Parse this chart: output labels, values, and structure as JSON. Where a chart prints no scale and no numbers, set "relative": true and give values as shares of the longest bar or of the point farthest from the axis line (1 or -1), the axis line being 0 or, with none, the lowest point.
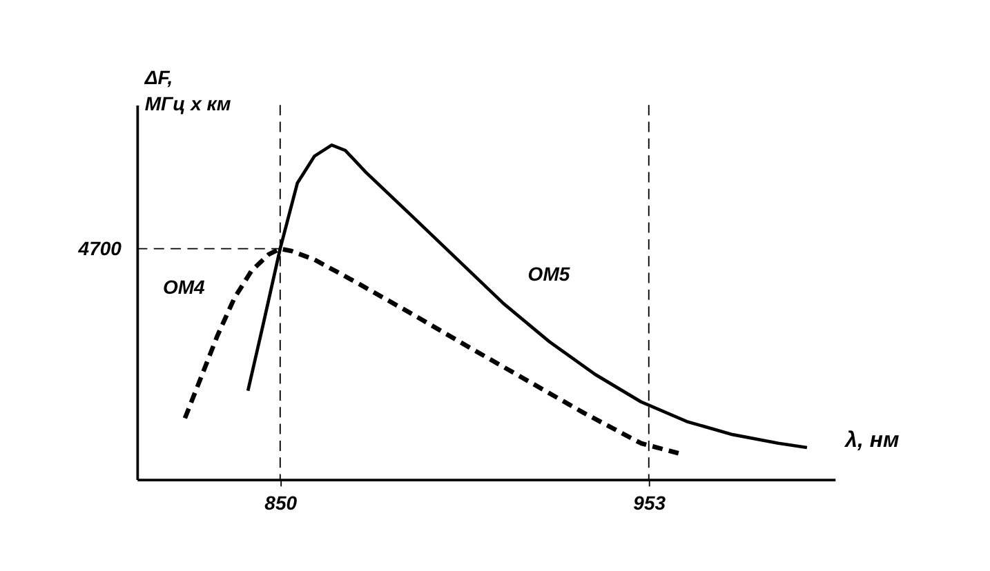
{
  "chart_data": {
    "type": "line",
    "relative": true,
    "xlabel": "λ, нм",
    "ylabel": "ΔF,\nМГц x км",
    "xlim": [
      810,
      1005
    ],
    "xticks": [
      850,
      953
    ],
    "series": [
      {
        "color": "#000000",
        "line_style": "solid",
        "x": [
          841.0,
          845.2,
          850,
          854.8,
          859.6,
          864.4,
          868.2,
          874.0,
          886.8,
          899.6,
          912.4,
          925.2,
          938.0,
          950.8,
          963.6,
          976.4,
          989.2,
          997.2
        ],
        "values": [
          0.265,
          0.461,
          0.69,
          0.886,
          0.967,
          1.0,
          0.984,
          0.918,
          0.788,
          0.657,
          0.526,
          0.412,
          0.314,
          0.232,
          0.173,
          0.134,
          0.108,
          0.095
        ]
      },
      {
        "color": "#000000",
        "line_style": "dashed",
        "x": [
          823.4,
          827.6,
          832.4,
          837.2,
          842.0,
          846.8,
          850,
          853.2,
          859.6,
          870.8,
          886.8,
          902.8,
          918.8,
          934.8,
          950.8,
          961.3
        ],
        "values": [
          0.183,
          0.297,
          0.428,
          0.542,
          0.624,
          0.673,
          0.69,
          0.683,
          0.657,
          0.592,
          0.495,
          0.395,
          0.297,
          0.199,
          0.108,
          0.078
        ]
      }
    ],
    "ref_lines": [
      {
        "axis": "x",
        "value": 850,
        "line_style": "dashed"
      },
      {
        "axis": "x",
        "value": 953,
        "line_style": "dashed"
      },
      {
        "axis": "y",
        "value": 0.69,
        "line_style": "dashed"
      }
    ],
    "annotations": [
      "4700",
      "OM4",
      "OM5"
    ],
    "marker": "none",
    "grid": false,
    "tick_labels": "x"
  }
}
